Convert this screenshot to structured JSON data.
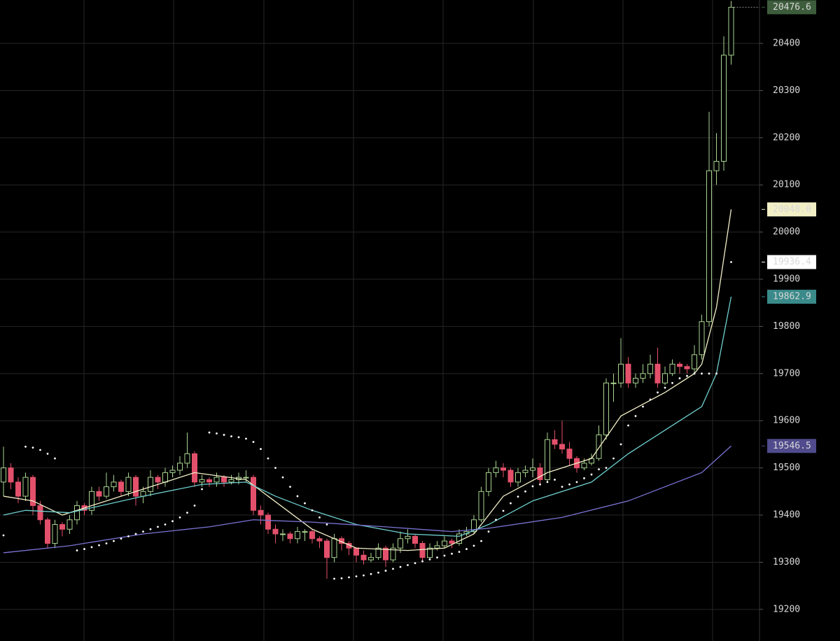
{
  "chart_data": {
    "type": "candlestick",
    "ylim": [
      19133,
      20492
    ],
    "yticks": [
      19200,
      19300,
      19400,
      19500,
      19600,
      19700,
      19800,
      19900,
      20000,
      20100,
      20200,
      20300,
      20400
    ],
    "grid": true,
    "up_color": "#a9d490",
    "down_color": "#e3506b",
    "last_price_color": "#3d5c3c",
    "open": [
      19470,
      19500,
      19470,
      19440,
      19480,
      19420,
      19390,
      19340,
      19380,
      19370,
      19390,
      19420,
      19410,
      19450,
      19440,
      19460,
      19470,
      19450,
      19480,
      19440,
      19450,
      19480,
      19470,
      19490,
      19495,
      19510,
      19530,
      19470,
      19475,
      19470,
      19480,
      19470,
      19475,
      19480,
      19480,
      19410,
      19400,
      19370,
      19360,
      19360,
      19350,
      19365,
      19365,
      19350,
      19345,
      19310,
      19350,
      19340,
      19330,
      19315,
      19305,
      19310,
      19330,
      19305,
      19330,
      19350,
      19355,
      19340,
      19310,
      19330,
      19335,
      19345,
      19340,
      19360,
      19365,
      19390,
      19450,
      19490,
      19500,
      19495,
      19470,
      19490,
      19495,
      19500,
      19475,
      19560,
      19550,
      19540,
      19520,
      19500,
      19510,
      19520,
      19570,
      19680,
      19680,
      19720,
      19680,
      19690,
      19700,
      19720,
      19680,
      19700,
      19720,
      19715,
      19710,
      19740,
      19810,
      20130,
      20150,
      20375
    ],
    "high": [
      19545,
      19510,
      19480,
      19490,
      19485,
      19430,
      19395,
      19390,
      19385,
      19400,
      19430,
      19425,
      19460,
      19460,
      19490,
      19485,
      19475,
      19490,
      19485,
      19460,
      19495,
      19485,
      19500,
      19505,
      19525,
      19575,
      19535,
      19485,
      19480,
      19490,
      19485,
      19485,
      19490,
      19495,
      19485,
      19420,
      19405,
      19380,
      19370,
      19365,
      19375,
      19370,
      19370,
      19355,
      19350,
      19360,
      19355,
      19345,
      19330,
      19325,
      19320,
      19340,
      19335,
      19340,
      19365,
      19370,
      19360,
      19345,
      19340,
      19345,
      19355,
      19350,
      19370,
      19375,
      19400,
      19460,
      19500,
      19515,
      19510,
      19500,
      19500,
      19505,
      19520,
      19510,
      19575,
      19580,
      19600,
      19555,
      19525,
      19520,
      19530,
      19590,
      19690,
      19700,
      19775,
      19735,
      19700,
      19720,
      19740,
      19755,
      19715,
      19730,
      19725,
      19720,
      19760,
      19825,
      20255,
      20210,
      20415,
      20490
    ],
    "low": [
      19440,
      19455,
      19425,
      19430,
      19400,
      19380,
      19330,
      19330,
      19355,
      19360,
      19380,
      19400,
      19400,
      19430,
      19435,
      19450,
      19440,
      19440,
      19420,
      19425,
      19440,
      19455,
      19460,
      19480,
      19485,
      19500,
      19460,
      19460,
      19460,
      19460,
      19460,
      19465,
      19465,
      19470,
      19400,
      19380,
      19360,
      19340,
      19345,
      19340,
      19340,
      19345,
      19340,
      19330,
      19265,
      19300,
      19325,
      19315,
      19300,
      19295,
      19300,
      19305,
      19290,
      19300,
      19320,
      19340,
      19330,
      19300,
      19305,
      19325,
      19330,
      19330,
      19335,
      19355,
      19360,
      19385,
      19440,
      19480,
      19480,
      19460,
      19460,
      19480,
      19480,
      19465,
      19470,
      19540,
      19530,
      19505,
      19490,
      19495,
      19505,
      19515,
      19560,
      19640,
      19670,
      19670,
      19670,
      19680,
      19690,
      19670,
      19675,
      19695,
      19700,
      19700,
      19700,
      19730,
      19800,
      20100,
      20130,
      20355
    ],
    "close": [
      19500,
      19470,
      19440,
      19480,
      19420,
      19390,
      19340,
      19380,
      19370,
      19390,
      19420,
      19410,
      19450,
      19440,
      19460,
      19470,
      19450,
      19480,
      19440,
      19450,
      19480,
      19470,
      19490,
      19495,
      19510,
      19530,
      19470,
      19475,
      19470,
      19480,
      19470,
      19475,
      19480,
      19480,
      19410,
      19400,
      19370,
      19360,
      19360,
      19350,
      19365,
      19365,
      19350,
      19345,
      19310,
      19350,
      19340,
      19330,
      19315,
      19305,
      19310,
      19330,
      19305,
      19330,
      19350,
      19355,
      19340,
      19310,
      19330,
      19335,
      19345,
      19340,
      19360,
      19365,
      19390,
      19450,
      19490,
      19500,
      19495,
      19470,
      19490,
      19495,
      19500,
      19475,
      19560,
      19550,
      19540,
      19520,
      19500,
      19510,
      19520,
      19570,
      19680,
      19680,
      19720,
      19680,
      19690,
      19700,
      19720,
      19680,
      19700,
      19720,
      19715,
      19710,
      19740,
      19810,
      20130,
      20150,
      20375,
      20476.6
    ],
    "indicators": [
      {
        "kind": "line",
        "color": "#f2efc6",
        "tag_text": "#111",
        "last_label": "20048.0",
        "x": [
          0,
          4,
          8,
          12,
          20,
          26,
          33,
          36,
          42,
          48,
          55,
          60,
          64,
          68,
          74,
          80,
          84,
          90,
          94,
          95,
          97,
          99
        ],
        "values": [
          19440,
          19430,
          19400,
          19420,
          19460,
          19490,
          19475,
          19440,
          19370,
          19330,
          19325,
          19330,
          19360,
          19440,
          19490,
          19520,
          19610,
          19660,
          19700,
          19720,
          19840,
          20048.0
        ]
      },
      {
        "kind": "line",
        "color": "#6fd0cf",
        "tag_bg": "#3a8a8a",
        "tag_text": "#fff",
        "last_label": "19862.9",
        "x": [
          0,
          3,
          9,
          19,
          27,
          33,
          37,
          42,
          48,
          55,
          62,
          66,
          72,
          80,
          85,
          90,
          95,
          97,
          99
        ],
        "values": [
          19400,
          19410,
          19405,
          19440,
          19465,
          19470,
          19440,
          19410,
          19380,
          19360,
          19355,
          19380,
          19430,
          19470,
          19530,
          19580,
          19630,
          19700,
          19862.9
        ]
      },
      {
        "kind": "line",
        "color": "#7b74d6",
        "tag_bg": "#4f4b8c",
        "tag_text": "#fff",
        "last_label": "19546.5",
        "x": [
          0,
          9,
          19,
          28,
          34,
          42,
          52,
          61,
          66,
          76,
          85,
          95,
          99
        ],
        "values": [
          19320,
          19335,
          19360,
          19375,
          19390,
          19385,
          19375,
          19365,
          19372,
          19395,
          19430,
          19490,
          19546.5
        ]
      },
      {
        "kind": "dots",
        "color": "#ffffff",
        "tag_text": "#111",
        "last_label": "19936.4",
        "x": [
          0,
          3,
          4,
          5,
          6,
          7,
          10,
          11,
          12,
          13,
          14,
          15,
          16,
          17,
          18,
          19,
          20,
          21,
          22,
          23,
          24,
          25,
          26,
          27,
          28,
          29,
          30,
          31,
          32,
          33,
          34,
          35,
          36,
          37,
          38,
          39,
          40,
          41,
          42,
          43,
          44,
          45,
          46,
          47,
          48,
          49,
          50,
          51,
          52,
          53,
          54,
          55,
          56,
          57,
          58,
          59,
          60,
          61,
          62,
          63,
          64,
          65,
          66,
          67,
          68,
          69,
          70,
          71,
          72,
          73,
          74,
          75,
          76,
          77,
          78,
          79,
          80,
          81,
          82,
          83,
          84,
          85,
          86,
          87,
          88,
          89,
          90,
          91,
          92,
          93,
          94,
          95,
          96,
          97,
          99
        ],
        "values": [
          19357,
          19545,
          19543,
          19538,
          19530,
          19520,
          19325,
          19328,
          19332,
          19336,
          19340,
          19345,
          19350,
          19355,
          19360,
          19365,
          19370,
          19375,
          19380,
          19387,
          19395,
          19405,
          19420,
          19455,
          19575,
          19573,
          19570,
          19567,
          19565,
          19562,
          19555,
          19540,
          19520,
          19500,
          19480,
          19460,
          19440,
          19425,
          19410,
          19395,
          19380,
          19265,
          19266,
          19268,
          19270,
          19272,
          19275,
          19278,
          19282,
          19286,
          19290,
          19294,
          19298,
          19302,
          19306,
          19310,
          19314,
          19318,
          19322,
          19328,
          19335,
          19345,
          19365,
          19390,
          19409,
          19425,
          19439,
          19450,
          19461,
          19465,
          19470,
          19475,
          19460,
          19465,
          19470,
          19478,
          19486,
          19497,
          19500,
          19520,
          19550,
          19590,
          19610,
          19630,
          19645,
          19660,
          19670,
          19680,
          19690,
          19695,
          19700,
          19700,
          19700,
          19700,
          19936.4
        ]
      }
    ]
  }
}
